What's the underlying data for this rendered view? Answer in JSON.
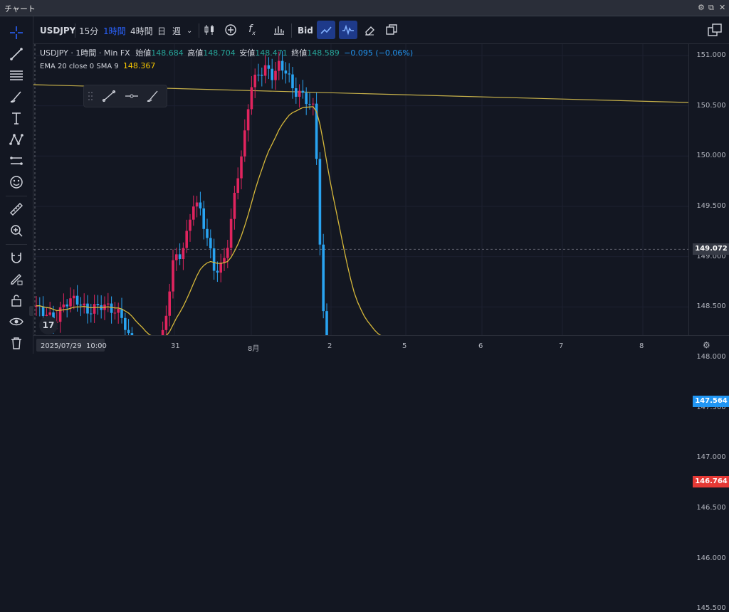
{
  "window": {
    "title": "チャート"
  },
  "toolbar": {
    "symbol": "USDJPY",
    "tf_15m": "15分",
    "tf_1h": "1時間",
    "tf_4h": "4時間",
    "tf_day": "日",
    "tf_week": "週",
    "bid": "Bid"
  },
  "legend": {
    "symbol": "USDJPY · 1時間 · Min FX",
    "open_label": "始値",
    "open": "148.684",
    "high_label": "高値",
    "high": "148.704",
    "low_label": "安値",
    "low": "148.471",
    "close_label": "終値",
    "close": "148.589",
    "change": "−0.095 (−0.06%)",
    "ema_label": "EMA 20 close 0 SMA 9",
    "ema_value": "148.367"
  },
  "price_axis": {
    "ticks": [
      "151.000",
      "150.500",
      "150.000",
      "149.500",
      "149.000",
      "148.500",
      "148.000",
      "147.500",
      "147.000",
      "146.500",
      "146.000",
      "145.500"
    ],
    "crosshair_price": "149.072",
    "current_price": "147.564",
    "line_price": "146.764"
  },
  "time_axis": {
    "ticks": [
      "31",
      "8月",
      "2",
      "5",
      "6",
      "7",
      "8"
    ],
    "cursor_label": "2025/07/29  10:00"
  },
  "colors": {
    "up": "#e0245e",
    "down": "#29a3f0",
    "ema": "#d6b83a",
    "hline": "#e53935",
    "trend": "#c7b14a"
  },
  "icons": {
    "left": [
      "crosshair-icon",
      "trendline-icon",
      "fib-icon",
      "brush-icon",
      "text-icon",
      "pattern-icon",
      "measure-icon",
      "emoji-icon",
      "ruler-icon",
      "zoom-icon",
      "magnet-icon",
      "lock-draw-icon",
      "lock-icon",
      "eye-icon",
      "trash-icon"
    ]
  }
}
